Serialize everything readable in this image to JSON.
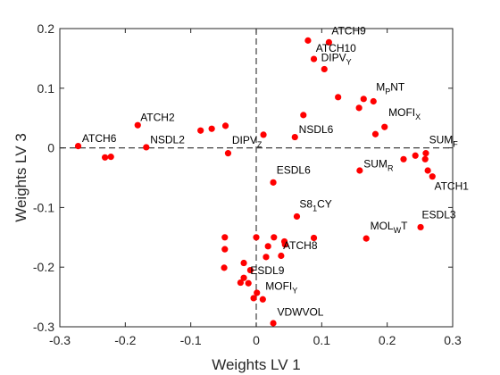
{
  "chart_data": {
    "type": "scatter",
    "xlabel": "Weights LV 1",
    "ylabel": "Weights LV 3",
    "xlim": [
      -0.3,
      0.3
    ],
    "ylim": [
      -0.3,
      0.2
    ],
    "xticks": [
      "-0.3",
      "-0.2",
      "-0.1",
      "0",
      "0.1",
      "0.2",
      "0.3"
    ],
    "yticks": [
      "-0.3",
      "-0.2",
      "-0.1",
      "0",
      "0.1",
      "0.2"
    ],
    "grid": false,
    "reference_lines": {
      "x": 0,
      "y": 0,
      "style": "dashed"
    },
    "marker_color": "#ff0000",
    "points": [
      {
        "x": 0.079,
        "y": 0.18
      },
      {
        "x": 0.111,
        "y": 0.177
      },
      {
        "x": 0.088,
        "y": 0.149
      },
      {
        "x": 0.104,
        "y": 0.132
      },
      {
        "x": 0.125,
        "y": 0.085
      },
      {
        "x": 0.164,
        "y": 0.082
      },
      {
        "x": 0.179,
        "y": 0.078
      },
      {
        "x": 0.157,
        "y": 0.067
      },
      {
        "x": 0.072,
        "y": 0.055
      },
      {
        "x": 0.196,
        "y": 0.035
      },
      {
        "x": 0.182,
        "y": 0.023
      },
      {
        "x": -0.181,
        "y": 0.038
      },
      {
        "x": -0.085,
        "y": 0.029
      },
      {
        "x": -0.068,
        "y": 0.032
      },
      {
        "x": -0.047,
        "y": 0.037
      },
      {
        "x": 0.011,
        "y": 0.022
      },
      {
        "x": 0.059,
        "y": 0.018
      },
      {
        "x": -0.272,
        "y": 0.003
      },
      {
        "x": -0.168,
        "y": 0.001
      },
      {
        "x": -0.231,
        "y": -0.016
      },
      {
        "x": -0.222,
        "y": -0.015
      },
      {
        "x": -0.043,
        "y": -0.009
      },
      {
        "x": 0.259,
        "y": -0.009
      },
      {
        "x": 0.258,
        "y": -0.019
      },
      {
        "x": 0.243,
        "y": -0.013
      },
      {
        "x": 0.225,
        "y": -0.019
      },
      {
        "x": 0.158,
        "y": -0.038
      },
      {
        "x": 0.262,
        "y": -0.038
      },
      {
        "x": 0.269,
        "y": -0.048
      },
      {
        "x": 0.026,
        "y": -0.058
      },
      {
        "x": 0.062,
        "y": -0.115
      },
      {
        "x": 0.251,
        "y": -0.133
      },
      {
        "x": 0.168,
        "y": -0.152
      },
      {
        "x": -0.048,
        "y": -0.15
      },
      {
        "x": 0.0,
        "y": -0.15
      },
      {
        "x": 0.027,
        "y": -0.15
      },
      {
        "x": 0.088,
        "y": -0.151
      },
      {
        "x": 0.043,
        "y": -0.157
      },
      {
        "x": 0.044,
        "y": -0.162
      },
      {
        "x": 0.018,
        "y": -0.165
      },
      {
        "x": -0.048,
        "y": -0.17
      },
      {
        "x": 0.038,
        "y": -0.181
      },
      {
        "x": 0.015,
        "y": -0.183
      },
      {
        "x": -0.019,
        "y": -0.193
      },
      {
        "x": -0.049,
        "y": -0.201
      },
      {
        "x": -0.009,
        "y": -0.205
      },
      {
        "x": -0.019,
        "y": -0.218
      },
      {
        "x": -0.024,
        "y": -0.226
      },
      {
        "x": -0.012,
        "y": -0.227
      },
      {
        "x": 0.001,
        "y": -0.243
      },
      {
        "x": -0.004,
        "y": -0.252
      },
      {
        "x": 0.01,
        "y": -0.254
      },
      {
        "x": 0.026,
        "y": -0.294
      }
    ],
    "labels": [
      {
        "text": "ATCH9",
        "x": 0.115,
        "y": 0.19,
        "parts": [
          {
            "t": "ATCH9"
          }
        ]
      },
      {
        "text": "ATCH10",
        "x": 0.091,
        "y": 0.161,
        "parts": [
          {
            "t": "ATCH10"
          }
        ]
      },
      {
        "text": "DIPVY",
        "x": 0.099,
        "y": 0.145,
        "parts": [
          {
            "t": "DIPV"
          },
          {
            "t": "Y",
            "sub": true
          }
        ]
      },
      {
        "text": "MPNT",
        "x": 0.183,
        "y": 0.096,
        "parts": [
          {
            "t": "M"
          },
          {
            "t": "P",
            "sub": true
          },
          {
            "t": "NT"
          }
        ]
      },
      {
        "text": "MOFIX",
        "x": 0.202,
        "y": 0.053,
        "parts": [
          {
            "t": "MOFI"
          },
          {
            "t": "X",
            "sub": true
          }
        ]
      },
      {
        "text": "ATCH2",
        "x": -0.177,
        "y": 0.045,
        "parts": [
          {
            "t": "ATCH2"
          }
        ]
      },
      {
        "text": "NSDL6",
        "x": 0.065,
        "y": 0.025,
        "parts": [
          {
            "t": "NSDL6"
          }
        ]
      },
      {
        "text": "ATCH6",
        "x": -0.266,
        "y": 0.01,
        "parts": [
          {
            "t": "ATCH6"
          }
        ]
      },
      {
        "text": "NSDL2",
        "x": -0.162,
        "y": 0.008,
        "parts": [
          {
            "t": "NSDL2"
          }
        ]
      },
      {
        "text": "DIPVZ",
        "x": -0.037,
        "y": 0.007,
        "parts": [
          {
            "t": "DIPV"
          },
          {
            "t": "Z",
            "sub": true
          }
        ]
      },
      {
        "text": "SUMF",
        "x": 0.264,
        "y": 0.008,
        "parts": [
          {
            "t": "SUM"
          },
          {
            "t": "F",
            "sub": true
          }
        ]
      },
      {
        "text": "SUMR",
        "x": 0.164,
        "y": -0.033,
        "parts": [
          {
            "t": "SUM"
          },
          {
            "t": "R",
            "sub": true
          }
        ]
      },
      {
        "text": "ATCH1",
        "x": 0.272,
        "y": -0.07,
        "parts": [
          {
            "t": "ATCH1"
          }
        ]
      },
      {
        "text": "ESDL6",
        "x": 0.031,
        "y": -0.043,
        "parts": [
          {
            "t": "ESDL6"
          }
        ]
      },
      {
        "text": "S81CY",
        "x": 0.066,
        "y": -0.1,
        "parts": [
          {
            "t": "S8"
          },
          {
            "t": "1",
            "sub": true
          },
          {
            "t": "CY"
          }
        ]
      },
      {
        "text": "MOLWT",
        "x": 0.174,
        "y": -0.137,
        "parts": [
          {
            "t": "MOL"
          },
          {
            "t": "W",
            "sub": true
          },
          {
            "t": "T"
          }
        ]
      },
      {
        "text": "ESDL3",
        "x": 0.253,
        "y": -0.118,
        "parts": [
          {
            "t": "ESDL3"
          }
        ]
      },
      {
        "text": "ATCH8",
        "x": 0.041,
        "y": -0.17,
        "parts": [
          {
            "t": "ATCH8"
          }
        ]
      },
      {
        "text": "ESDL9",
        "x": -0.009,
        "y": -0.212,
        "parts": [
          {
            "t": "ESDL9"
          }
        ]
      },
      {
        "text": "MOFIY",
        "x": 0.014,
        "y": -0.238,
        "parts": [
          {
            "t": "MOFI"
          },
          {
            "t": "Y",
            "sub": true
          }
        ]
      },
      {
        "text": "VDWVOL",
        "x": 0.032,
        "y": -0.281,
        "parts": [
          {
            "t": "VDWVOL"
          }
        ]
      }
    ]
  }
}
